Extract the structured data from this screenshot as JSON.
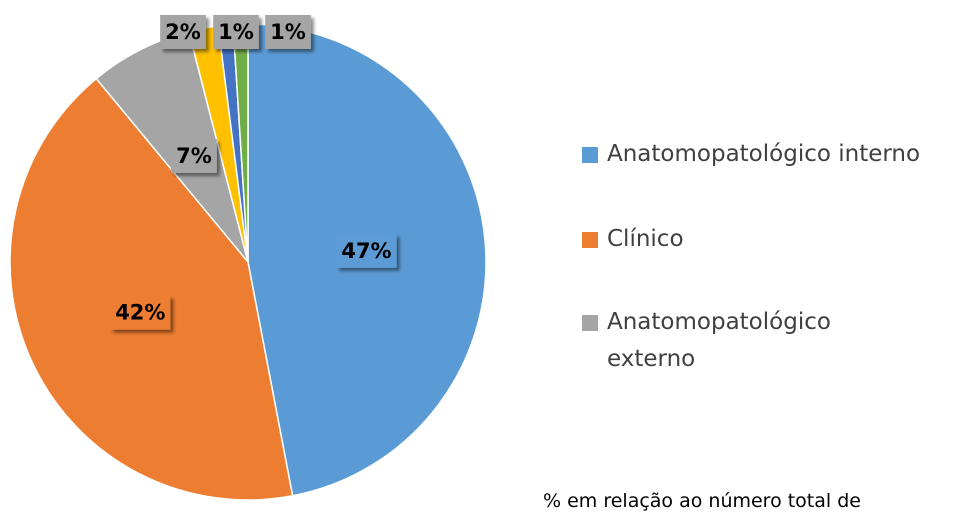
{
  "chart_data": {
    "type": "pie",
    "categories": [
      "Anatomopatológico interno",
      "Clínico",
      "Anatomopatológico externo",
      null,
      null,
      null
    ],
    "values": [
      47,
      42,
      7,
      2,
      1,
      1
    ],
    "value_labels": [
      "47%",
      "42%",
      "7%",
      "2%",
      "1%",
      "1%"
    ],
    "colors": [
      "#5b9bd5",
      "#ed7d31",
      "#a5a5a5",
      "#ffc000",
      "#4472c4",
      "#70ad47"
    ],
    "annotation": "% em relação ao número total de",
    "legend": "right"
  }
}
